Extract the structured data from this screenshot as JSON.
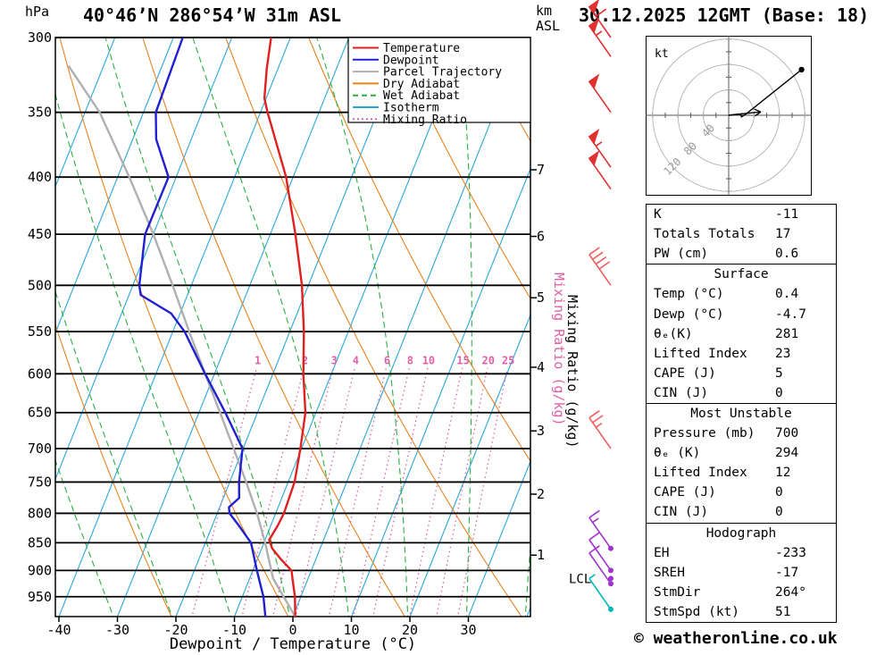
{
  "title": "40°46’N 286°54’W 31m ASL",
  "date_label": "30.12.2025 12GMT (Base: 18)",
  "copyright": "© weatheronline.co.uk",
  "axes": {
    "pressure_unit": "hPa",
    "altitude_unit_top": "km",
    "altitude_unit_bottom": "ASL",
    "x_label": "Dewpoint / Temperature (°C)",
    "mixing_ratio_label": "Mixing Ratio (g/kg)",
    "lcl_label": "LCL"
  },
  "legend": [
    {
      "label": "Temperature",
      "color": "#e02020",
      "style": "solid"
    },
    {
      "label": "Dewpoint",
      "color": "#2020d0",
      "style": "solid"
    },
    {
      "label": "Parcel Trajectory",
      "color": "#b0b0b0",
      "style": "solid"
    },
    {
      "label": "Dry Adiabat",
      "color": "#e8821e",
      "style": "solid"
    },
    {
      "label": "Wet Adiabat",
      "color": "#2ab040",
      "style": "dashed"
    },
    {
      "label": "Isotherm",
      "color": "#2aa8dc",
      "style": "solid"
    },
    {
      "label": "Mixing Ratio",
      "color": "#e060a8",
      "style": "dotted"
    }
  ],
  "chart_data": {
    "type": "skewt_log_p",
    "title": "40°46’N 286°54’W 31m ASL",
    "pressure_ticks": [
      300,
      350,
      400,
      450,
      500,
      550,
      600,
      650,
      700,
      750,
      800,
      850,
      900,
      950
    ],
    "pressure_range": [
      300,
      993
    ],
    "temp_axis_ticks": [
      -40,
      -30,
      -20,
      -10,
      0,
      10,
      20,
      30
    ],
    "temp_axis_range": [
      -40,
      40
    ],
    "km_ticks": [
      {
        "km": 7,
        "p": 394
      },
      {
        "km": 6,
        "p": 452
      },
      {
        "km": 5,
        "p": 513
      },
      {
        "km": 4,
        "p": 592
      },
      {
        "km": 3,
        "p": 675
      },
      {
        "km": 2,
        "p": 769
      },
      {
        "km": 1,
        "p": 872
      }
    ],
    "lcl_pressure": 915,
    "mixing_ratio_values": [
      1,
      2,
      3,
      4,
      6,
      8,
      10,
      15,
      20,
      25
    ],
    "isotherms_c": {
      "min": -80,
      "max": 40,
      "step": 10
    },
    "dry_adiabats_c": {
      "min": -60,
      "max": 200,
      "step": 20
    },
    "wet_adiabats_c": {
      "min": -60,
      "max": 40,
      "step": 10
    },
    "temperature_profile": [
      [
        990,
        0.4
      ],
      [
        950,
        -1.0
      ],
      [
        925,
        -2.2
      ],
      [
        900,
        -3.4
      ],
      [
        880,
        -5.9
      ],
      [
        860,
        -8.2
      ],
      [
        845,
        -9.3
      ],
      [
        820,
        -8.8
      ],
      [
        800,
        -8.6
      ],
      [
        750,
        -8.9
      ],
      [
        700,
        -10.2
      ],
      [
        650,
        -11.8
      ],
      [
        600,
        -14.8
      ],
      [
        550,
        -17.6
      ],
      [
        500,
        -21.1
      ],
      [
        450,
        -25.7
      ],
      [
        400,
        -31.2
      ],
      [
        350,
        -38.8
      ],
      [
        340,
        -40.3
      ],
      [
        320,
        -41.9
      ],
      [
        300,
        -43.3
      ]
    ],
    "dewpoint_profile": [
      [
        990,
        -4.7
      ],
      [
        950,
        -6.4
      ],
      [
        900,
        -9.3
      ],
      [
        850,
        -12.2
      ],
      [
        820,
        -15.5
      ],
      [
        800,
        -17.9
      ],
      [
        790,
        -18.4
      ],
      [
        775,
        -17.3
      ],
      [
        750,
        -18.4
      ],
      [
        700,
        -20.1
      ],
      [
        650,
        -25.5
      ],
      [
        600,
        -31.6
      ],
      [
        550,
        -38.0
      ],
      [
        530,
        -41.5
      ],
      [
        510,
        -48.0
      ],
      [
        500,
        -48.9
      ],
      [
        450,
        -51.4
      ],
      [
        400,
        -51.3
      ],
      [
        370,
        -56.0
      ],
      [
        350,
        -57.9
      ],
      [
        300,
        -58.4
      ]
    ],
    "parcel_profile": [
      [
        990,
        0.4
      ],
      [
        915,
        -6.0
      ],
      [
        850,
        -9.8
      ],
      [
        800,
        -13.2
      ],
      [
        750,
        -17.2
      ],
      [
        700,
        -21.6
      ],
      [
        650,
        -26.4
      ],
      [
        600,
        -31.6
      ],
      [
        550,
        -37.2
      ],
      [
        500,
        -43.2
      ],
      [
        450,
        -50.0
      ],
      [
        400,
        -58.0
      ],
      [
        350,
        -67.5
      ],
      [
        318,
        -76.0
      ]
    ],
    "wind_barbs": [
      {
        "p": 300,
        "kt": 60,
        "color": "#e03030",
        "dot": false
      },
      {
        "p": 312,
        "kt": 55,
        "color": "#e03030",
        "dot": false
      },
      {
        "p": 350,
        "kt": 50,
        "color": "#e03030",
        "dot": false
      },
      {
        "p": 392,
        "kt": 55,
        "color": "#e03030",
        "dot": false
      },
      {
        "p": 410,
        "kt": 50,
        "color": "#e03030",
        "dot": false
      },
      {
        "p": 500,
        "kt": 40,
        "color": "#f25c5c",
        "dot": false
      },
      {
        "p": 700,
        "kt": 25,
        "color": "#f25c5c",
        "dot": false
      },
      {
        "p": 860,
        "kt": 15,
        "color": "#a033cc",
        "dot": true
      },
      {
        "p": 900,
        "kt": 10,
        "color": "#a033cc",
        "dot": true
      },
      {
        "p": 925,
        "kt": 10,
        "color": "#a033cc",
        "dot": true
      },
      {
        "p": 975,
        "kt": 5,
        "color": "#00b8b8",
        "dot": true
      }
    ],
    "colors": {
      "temperature": "#e02020",
      "dewpoint": "#2020d0",
      "parcel": "#b0b0b0",
      "dry_adiabat": "#e8821e",
      "wet_adiabat": "#2ab040",
      "isotherm": "#2aa8dc",
      "mixing_ratio": "#e060a8",
      "pressure_line": "#000000",
      "lcl_marker": "#a033cc"
    }
  },
  "hodograph": {
    "unit_label": "kt",
    "ring_values_kt": [
      40,
      80,
      120
    ],
    "trace_uv_kt": [
      [
        0,
        0
      ],
      [
        16,
        2
      ],
      [
        21,
        -2
      ],
      [
        26,
        1
      ],
      [
        115,
        72
      ]
    ],
    "storm_motion": {
      "dir_deg": 264,
      "speed_kt": 51
    }
  },
  "stats": {
    "sections": [
      {
        "header": null,
        "rows": [
          [
            "K",
            "-11"
          ],
          [
            "Totals Totals",
            "17"
          ],
          [
            "PW (cm)",
            "0.6"
          ]
        ]
      },
      {
        "header": "Surface",
        "rows": [
          [
            "Temp (°C)",
            "0.4"
          ],
          [
            "Dewp (°C)",
            "-4.7"
          ],
          [
            "θₑ(K)",
            "281"
          ],
          [
            "Lifted Index",
            "23"
          ],
          [
            "CAPE (J)",
            "5"
          ],
          [
            "CIN (J)",
            "0"
          ]
        ]
      },
      {
        "header": "Most Unstable",
        "rows": [
          [
            "Pressure (mb)",
            "700"
          ],
          [
            "θₑ (K)",
            "294"
          ],
          [
            "Lifted Index",
            "12"
          ],
          [
            "CAPE (J)",
            "0"
          ],
          [
            "CIN (J)",
            "0"
          ]
        ]
      },
      {
        "header": "Hodograph",
        "rows": [
          [
            "EH",
            "-233"
          ],
          [
            "SREH",
            "-17"
          ],
          [
            "StmDir",
            "264°"
          ],
          [
            "StmSpd (kt)",
            "51"
          ]
        ]
      }
    ]
  }
}
